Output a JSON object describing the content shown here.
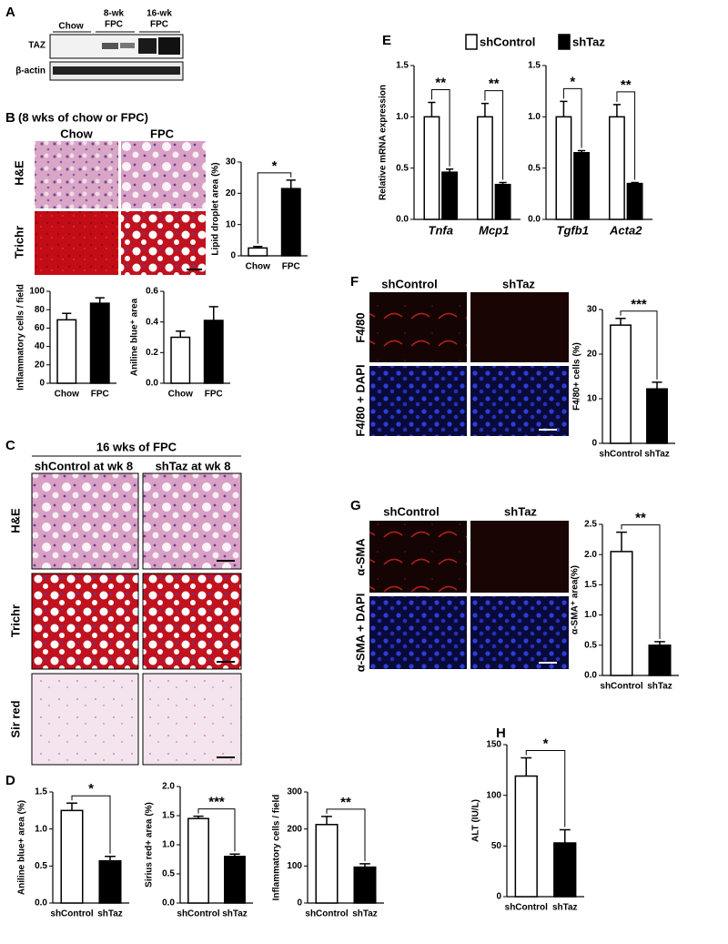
{
  "panels": {
    "A": {
      "letter": "A",
      "groups": [
        [
          "Chow"
        ],
        [
          "8-wk",
          "FPC"
        ],
        [
          "16-wk",
          "FPC"
        ]
      ],
      "rows": [
        "TAZ",
        "β-actin"
      ]
    },
    "B": {
      "letter": "B",
      "title": "(8 wks of chow or FPC)",
      "columns": [
        "Chow",
        "FPC"
      ],
      "rows": [
        "H&E",
        "Trichr"
      ]
    },
    "C": {
      "letter": "C",
      "title": "16 wks of FPC",
      "columns": [
        "shControl at wk 8",
        "shTaz at wk 8"
      ],
      "rows": [
        "H&E",
        "Trichr",
        "Sir red"
      ]
    },
    "D": {
      "letter": "D"
    },
    "E": {
      "letter": "E"
    },
    "F": {
      "letter": "F",
      "columns": [
        "shControl",
        "shTaz"
      ],
      "rows": [
        "F4/80",
        "F4/80 + DAPI"
      ]
    },
    "G": {
      "letter": "G",
      "columns": [
        "shControl",
        "shTaz"
      ],
      "rows": [
        "α-SMA",
        "α-SMA + DAPI"
      ]
    },
    "H": {
      "letter": "H"
    }
  },
  "chart_data": [
    {
      "type": "bar",
      "ylabel": "Lipid droplet area (%)",
      "categories": [
        "Chow",
        "FPC"
      ],
      "values": [
        2.5,
        21.5
      ],
      "errors": [
        0.5,
        2.7
      ],
      "colors": [
        "#ffffff",
        "#000000"
      ],
      "ylim": [
        0,
        30
      ],
      "yticks": [
        0,
        10,
        20,
        30
      ],
      "significance": "*"
    },
    {
      "type": "bar",
      "ylabel": "Inflammatory cells / field",
      "categories": [
        "Chow",
        "FPC"
      ],
      "values": [
        69,
        87
      ],
      "errors": [
        7,
        6
      ],
      "colors": [
        "#ffffff",
        "#000000"
      ],
      "ylim": [
        0,
        100
      ],
      "yticks": [
        0,
        20,
        40,
        60,
        80,
        100
      ]
    },
    {
      "type": "bar",
      "ylabel": "Aniline blue⁺ area",
      "categories": [
        "Chow",
        "FPC"
      ],
      "values": [
        0.3,
        0.41
      ],
      "errors": [
        0.04,
        0.09
      ],
      "colors": [
        "#ffffff",
        "#000000"
      ],
      "ylim": [
        0,
        0.6
      ],
      "yticks": [
        {
          "value": 0,
          "label": "0.0"
        },
        {
          "value": 0.2,
          "label": "0.2"
        },
        {
          "value": 0.4,
          "label": "0.4"
        },
        {
          "value": 0.6,
          "label": "0.6"
        }
      ]
    },
    {
      "type": "bar",
      "ylabel": "Aniline blue+ area (%)",
      "categories": [
        "shControl",
        "shTaz"
      ],
      "values": [
        1.25,
        0.57
      ],
      "errors": [
        0.1,
        0.06
      ],
      "colors": [
        "#ffffff",
        "#000000"
      ],
      "ylim": [
        0,
        1.5
      ],
      "yticks": [
        {
          "value": 0,
          "label": "0.0"
        },
        {
          "value": 0.5,
          "label": "0.5"
        },
        {
          "value": 1,
          "label": "1.0"
        },
        {
          "value": 1.5,
          "label": "1.5"
        }
      ],
      "significance": "*"
    },
    {
      "type": "bar",
      "ylabel": "Sirius red+ area (%)",
      "categories": [
        "shControl",
        "shTaz"
      ],
      "values": [
        1.45,
        0.8
      ],
      "errors": [
        0.04,
        0.04
      ],
      "colors": [
        "#ffffff",
        "#000000"
      ],
      "ylim": [
        0,
        2
      ],
      "yticks": [
        {
          "value": 0,
          "label": "0.0"
        },
        {
          "value": 0.5,
          "label": "0.5"
        },
        {
          "value": 1,
          "label": "1.0"
        },
        {
          "value": 1.5,
          "label": "1.5"
        },
        {
          "value": 2,
          "label": "2.0"
        }
      ],
      "significance": "***"
    },
    {
      "type": "bar",
      "ylabel": "Inflammatory cells / field",
      "categories": [
        "shControl",
        "shTaz"
      ],
      "values": [
        212,
        97
      ],
      "errors": [
        22,
        9
      ],
      "colors": [
        "#ffffff",
        "#000000"
      ],
      "ylim": [
        0,
        300
      ],
      "yticks": [
        0,
        100,
        200,
        300
      ],
      "significance": "**"
    },
    {
      "type": "grouped-bar",
      "ylabel": "Relative mRNA expression",
      "categories": [
        "Tnfa",
        "Mcp1",
        "Tgfb1",
        "Acta2"
      ],
      "series": [
        {
          "name": "shControl",
          "color": "#ffffff",
          "values": [
            1.0,
            1.0,
            1.0,
            1.0
          ],
          "errors": [
            0.14,
            0.13,
            0.15,
            0.12
          ]
        },
        {
          "name": "shTaz",
          "color": "#000000",
          "values": [
            0.46,
            0.34,
            0.65,
            0.35
          ],
          "errors": [
            0.03,
            0.02,
            0.02,
            0.01
          ]
        }
      ],
      "ylim": [
        0,
        1.5
      ],
      "yticks": [
        {
          "value": 0,
          "label": "0.0"
        },
        {
          "value": 0.5,
          "label": "0.5"
        },
        {
          "value": 1,
          "label": "1.0"
        },
        {
          "value": 1.5,
          "label": "1.5"
        }
      ],
      "significance": [
        "**",
        "**",
        "*",
        "**"
      ]
    },
    {
      "type": "bar",
      "ylabel": "F4/80+ cells (%)",
      "categories": [
        "shControl",
        "shTaz"
      ],
      "values": [
        26.5,
        12.2
      ],
      "errors": [
        1.5,
        1.5
      ],
      "colors": [
        "#ffffff",
        "#000000"
      ],
      "ylim": [
        0,
        30
      ],
      "yticks": [
        0,
        10,
        20,
        30
      ],
      "significance": "***"
    },
    {
      "type": "bar",
      "ylabel": "α-SMA⁺ area(%)",
      "categories": [
        "shControl",
        "shTaz"
      ],
      "values": [
        2.05,
        0.5
      ],
      "errors": [
        0.32,
        0.06
      ],
      "colors": [
        "#ffffff",
        "#000000"
      ],
      "ylim": [
        0,
        2.5
      ],
      "yticks": [
        {
          "value": 0,
          "label": "0.0"
        },
        {
          "value": 0.5,
          "label": "0.5"
        },
        {
          "value": 1,
          "label": "1.0"
        },
        {
          "value": 1.5,
          "label": "1.5"
        },
        {
          "value": 2,
          "label": "2.0"
        },
        {
          "value": 2.5,
          "label": "2.5"
        }
      ],
      "significance": "**"
    },
    {
      "type": "bar",
      "ylabel": "ALT (IU/L)",
      "categories": [
        "shControl",
        "shTaz"
      ],
      "values": [
        119,
        53
      ],
      "errors": [
        18,
        13
      ],
      "colors": [
        "#ffffff",
        "#000000"
      ],
      "ylim": [
        0,
        150
      ],
      "yticks": [
        0,
        50,
        100,
        150
      ],
      "significance": "*"
    }
  ]
}
